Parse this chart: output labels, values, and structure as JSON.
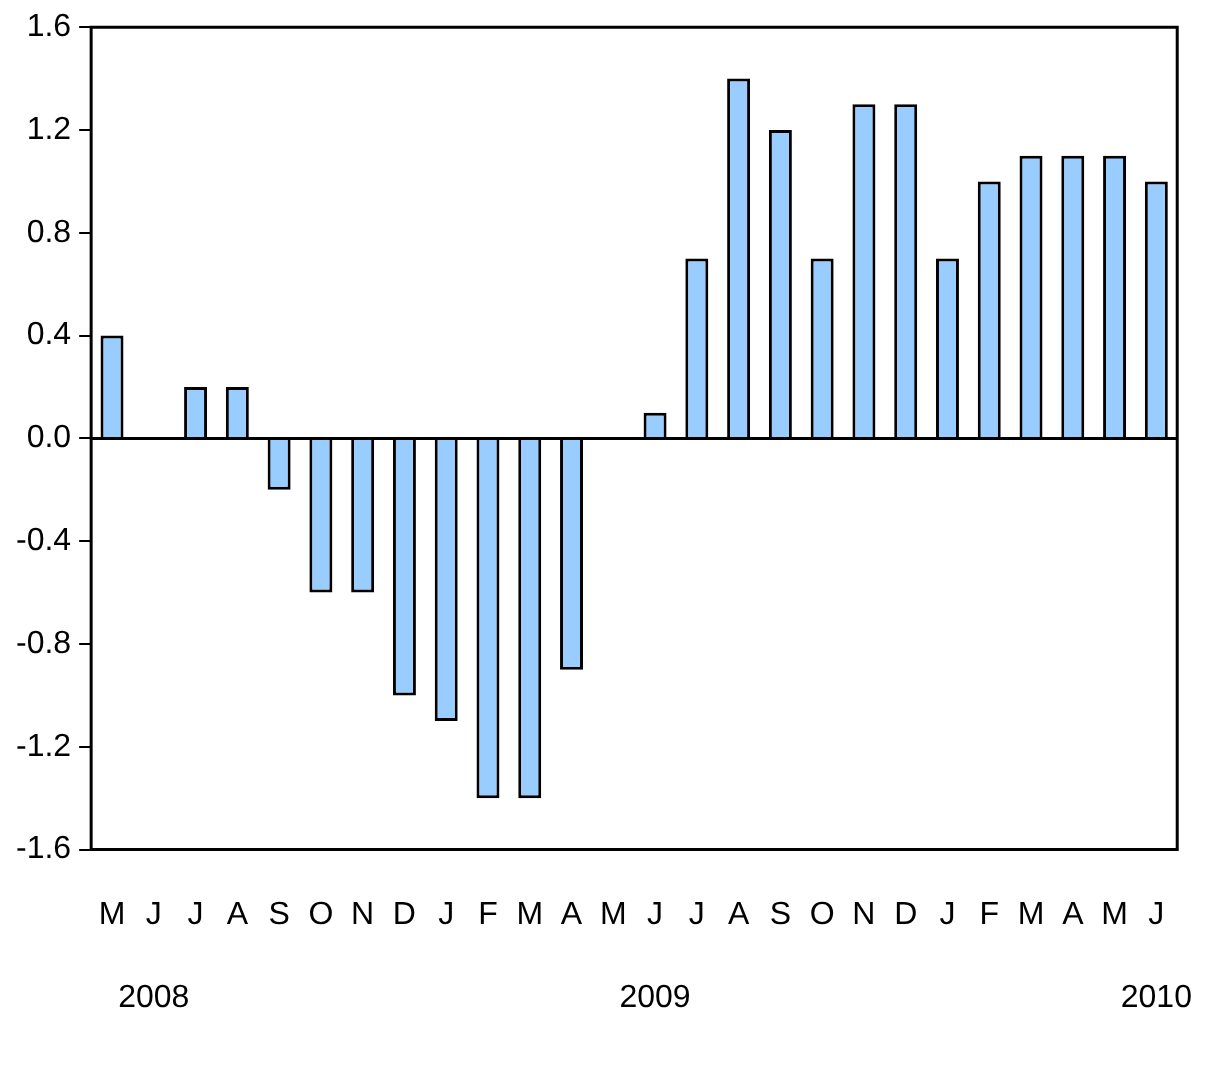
{
  "chart_data": {
    "type": "bar",
    "categories": [
      "M",
      "J\n2008",
      "J",
      "A",
      "S",
      "O",
      "N",
      "D",
      "J",
      "F",
      "M",
      "A",
      "M",
      "J\n2009",
      "J",
      "A",
      "S",
      "O",
      "N",
      "D",
      "J",
      "F",
      "M",
      "A",
      "M",
      "J\n2010"
    ],
    "values": [
      0.4,
      0,
      0.2,
      0.2,
      -0.2,
      -0.6,
      -0.6,
      -1.0,
      -1.1,
      -1.4,
      -1.4,
      -0.9,
      0,
      0.1,
      0.7,
      1.4,
      1.2,
      0.7,
      1.3,
      1.3,
      0.7,
      1.0,
      1.1,
      1.1,
      1.1,
      1.0
    ],
    "color": "#99ccff",
    "ylim": [
      -1.6,
      1.6
    ],
    "yticks": [
      -1.6,
      -1.2,
      -0.8,
      -0.4,
      {
        "value": 0,
        "label": "0.0"
      },
      0.4,
      0.8,
      1.2,
      1.6
    ],
    "ref_lines": [
      {
        "axis": "y",
        "value": 0,
        "color": "#000000"
      }
    ],
    "grid": false,
    "legend": false
  }
}
